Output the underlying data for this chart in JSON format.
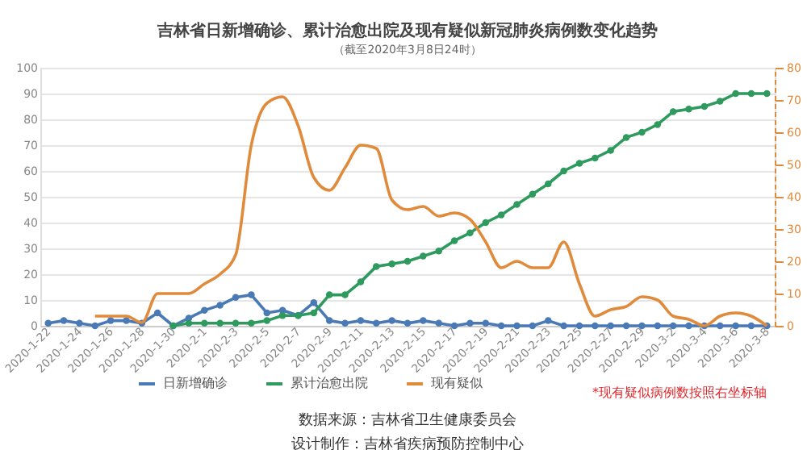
{
  "chart_data": {
    "type": "line",
    "title": "吉林省日新增确诊、累计治愈出院及现有疑似新冠肺炎病例数变化趋势",
    "subtitle": "（截至2020年3月8日24时）",
    "categories": [
      "2020-1-22",
      null,
      "2020-1-24",
      null,
      "2020-1-26",
      null,
      "2020-1-28",
      null,
      "2020-1-30",
      null,
      "2020-2-1",
      null,
      "2020-2-3",
      null,
      "2020-2-5",
      null,
      "2020-2-7",
      null,
      "2020-2-9",
      null,
      "2020-2-11",
      null,
      "2020-2-13",
      null,
      "2020-2-15",
      null,
      "2020-2-17",
      null,
      "2020-2-19",
      null,
      "2020-2-21",
      null,
      "2020-2-23",
      null,
      "2020-2-25",
      null,
      "2020-2-27",
      null,
      "2020-2-29",
      null,
      "2020-3-2",
      null,
      "2020-3-4",
      null,
      "2020-3-6",
      null,
      "2020-3-8"
    ],
    "series": [
      {
        "name": "日新增确诊",
        "color": "#4a7ab5",
        "marker": "circle",
        "values": [
          1,
          2,
          1,
          0,
          2,
          2,
          1,
          5,
          0,
          3,
          6,
          8,
          11,
          12,
          5,
          6,
          4,
          9,
          2,
          1,
          2,
          1,
          2,
          1,
          2,
          1,
          0,
          1,
          1,
          0,
          0,
          0,
          2,
          0,
          0,
          0,
          0,
          0,
          0,
          0,
          0,
          0,
          0,
          0,
          0,
          0,
          0
        ]
      },
      {
        "name": "累计治愈出院",
        "color": "#2e9a5e",
        "marker": "circle",
        "values": [
          null,
          null,
          null,
          null,
          null,
          null,
          null,
          null,
          0,
          1,
          1,
          1,
          1,
          1,
          2,
          4,
          4,
          5,
          12,
          12,
          17,
          23,
          24,
          25,
          27,
          29,
          33,
          36,
          40,
          43,
          47,
          51,
          55,
          60,
          63,
          65,
          68,
          73,
          75,
          78,
          83,
          84,
          85,
          87,
          90,
          90,
          90
        ]
      },
      {
        "name": "现有疑似",
        "color": "#e08a3c",
        "marker": "none",
        "axis": "y2",
        "values": [
          null,
          null,
          null,
          3,
          3,
          3,
          1,
          10,
          10,
          10,
          13,
          16,
          22,
          56,
          69,
          71,
          62,
          46,
          42,
          49,
          56,
          55,
          39,
          36,
          37,
          34,
          35,
          33,
          26,
          18,
          20,
          18,
          18,
          26,
          13,
          3,
          5,
          6,
          9,
          8,
          3,
          2,
          0,
          3,
          4,
          3,
          0
        ]
      }
    ],
    "ylim": [
      0,
      100
    ],
    "yticks": [
      0,
      10,
      20,
      30,
      40,
      50,
      60,
      70,
      80,
      90,
      100
    ],
    "y2lim": [
      0,
      80
    ],
    "y2ticks": [
      0,
      10,
      20,
      30,
      40,
      50,
      60,
      70,
      80
    ],
    "grid": "y",
    "legend": "bottom",
    "line_style": "solid",
    "annotations": [
      "*现有疑似病例数按照右坐标轴",
      "数据来源：吉林省卫生健康委员会",
      "设计制作：吉林省疾病预防控制中心"
    ]
  }
}
